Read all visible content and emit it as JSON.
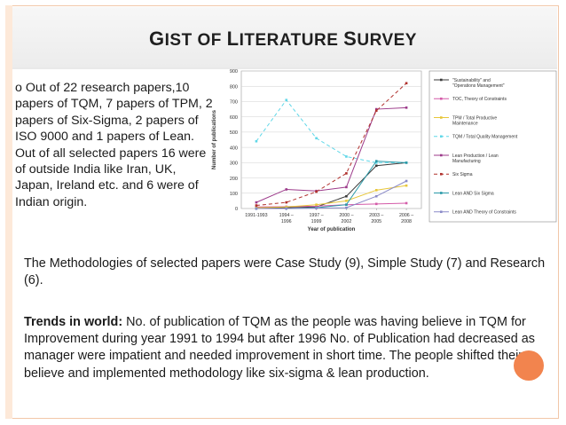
{
  "slide": {
    "title_parts": [
      {
        "text": "G",
        "big": true
      },
      {
        "text": "IST OF ",
        "big": false
      },
      {
        "text": "L",
        "big": true
      },
      {
        "text": "ITERATURE ",
        "big": false
      },
      {
        "text": "S",
        "big": true
      },
      {
        "text": "URVEY",
        "big": false
      }
    ],
    "intro_text": "o Out of 22 research papers,10 papers of TQM, 7 papers of TPM, 2 papers of Six-Sigma, 2 papers of ISO 9000 and 1 papers of Lean. Out of all selected papers 16 were of outside India like Iran, UK, Japan, Ireland etc. and 6 were of Indian origin.",
    "bullet1_text": "The Methodologies of selected papers were Case Study (9), Simple Study (7) and Research (6).",
    "bullet2_bold": "Trends in world:",
    "bullet2_text": " No. of publication of TQM as the people was having believe in TQM for Improvement during year 1991 to 1994 but after 1996 No. of Publication  had decreased as manager were impatient and needed improvement in short time. The people shifted their believe and implemented methodology like six-sigma & lean production.",
    "bullet_marker": "",
    "accent_color": "#e8602c"
  },
  "chart_data": {
    "type": "line",
    "xlabel": "Year of publication",
    "ylabel": "Number of publications",
    "ylim": [
      0,
      900
    ],
    "yticks": [
      0,
      100,
      200,
      300,
      400,
      500,
      600,
      700,
      800,
      900
    ],
    "categories": [
      "1991-1993",
      "1994 – 1996",
      "1997 – 1999",
      "2000 – 2002",
      "2003 – 2005",
      "2006 – 2008"
    ],
    "grid": true,
    "legend_position": "right",
    "series": [
      {
        "name": "\"Sustainability\" and \"Operations Management\"",
        "color": "#3a3a3a",
        "dash": "",
        "values": [
          5,
          5,
          10,
          80,
          280,
          300
        ]
      },
      {
        "name": "TOC, Theory of Constraints",
        "color": "#d45aa8",
        "dash": "",
        "values": [
          10,
          12,
          15,
          25,
          30,
          35
        ]
      },
      {
        "name": "TPM / Total Productive Maintenance",
        "color": "#e7c63a",
        "dash": "",
        "values": [
          5,
          10,
          25,
          50,
          120,
          150
        ]
      },
      {
        "name": "TQM / Total Quality Management",
        "color": "#5fd7e8",
        "dash": "4,3",
        "values": [
          440,
          710,
          460,
          340,
          300,
          300
        ]
      },
      {
        "name": "Lean Production / Lean Manufacturing",
        "color": "#9c3a8a",
        "dash": "",
        "values": [
          40,
          125,
          115,
          140,
          650,
          660
        ]
      },
      {
        "name": "Six Sigma",
        "color": "#b0302c",
        "dash": "4,3",
        "values": [
          20,
          40,
          110,
          230,
          640,
          820
        ]
      },
      {
        "name": "Lean AND Six Sigma",
        "color": "#2a9aa8",
        "dash": "",
        "values": [
          0,
          0,
          5,
          25,
          310,
          300
        ]
      },
      {
        "name": "Lean AND Theory of Constraints",
        "color": "#8a8ac8",
        "dash": "",
        "values": [
          0,
          0,
          2,
          5,
          80,
          180
        ]
      }
    ]
  }
}
